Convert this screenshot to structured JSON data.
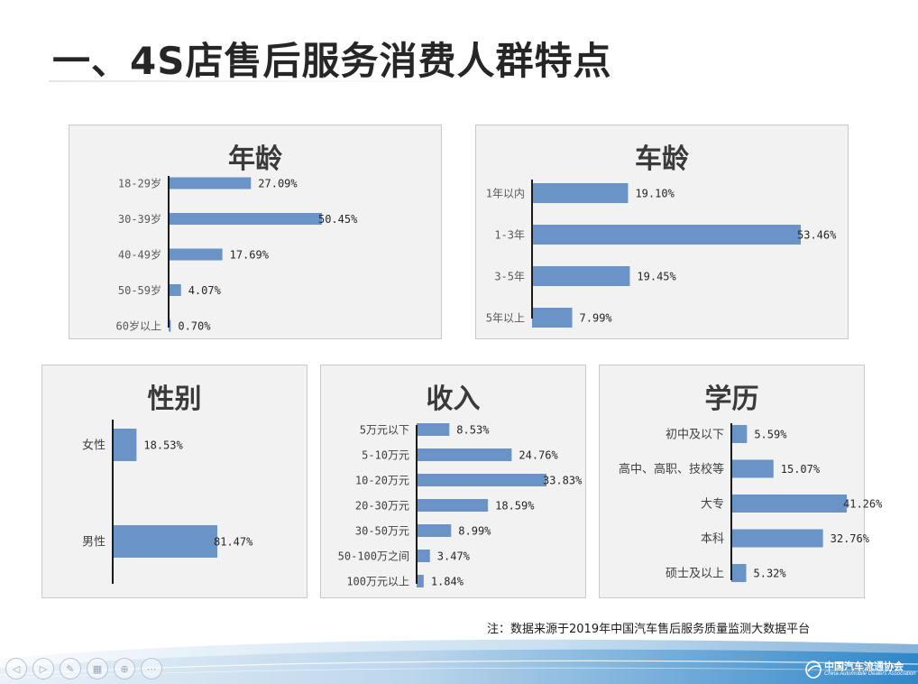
{
  "slide": {
    "title": "一、4S店售后服务消费人群特点",
    "footnote": "注：数据来源于2019年中国汽车售后服务质量监测大数据平台"
  },
  "logo": {
    "name": "中国汽车流通协会",
    "english": "China Automobile Dealers Association"
  },
  "colors": {
    "bar": "#6a93c8",
    "panel_bg": "#f2f2f2",
    "axis": "#1a1a1a"
  },
  "chart_data": [
    {
      "id": "age",
      "type": "bar",
      "orientation": "horizontal",
      "title": "年龄",
      "categories": [
        "18-29岁",
        "30-39岁",
        "40-49岁",
        "50-59岁",
        "60岁以上"
      ],
      "values": [
        27.09,
        50.45,
        17.69,
        4.07,
        0.7
      ],
      "labels": [
        "27.09%",
        "50.45%",
        "17.69%",
        "4.07%",
        "0.70%"
      ],
      "unit": "%",
      "xlim": [
        0,
        50.45
      ]
    },
    {
      "id": "car_age",
      "type": "bar",
      "orientation": "horizontal",
      "title": "车龄",
      "categories": [
        "1年以内",
        "1-3年",
        "3-5年",
        "5年以上"
      ],
      "values": [
        19.1,
        53.46,
        19.45,
        7.99
      ],
      "labels": [
        "19.10%",
        "53.46%",
        "19.45%",
        "7.99%"
      ],
      "unit": "%",
      "xlim": [
        0,
        53.46
      ]
    },
    {
      "id": "gender",
      "type": "bar",
      "orientation": "horizontal",
      "title": "性别",
      "categories": [
        "女性",
        "男性"
      ],
      "values": [
        18.53,
        81.47
      ],
      "labels": [
        "18.53%",
        "81.47%"
      ],
      "unit": "%",
      "xlim": [
        0,
        81.47
      ]
    },
    {
      "id": "income",
      "type": "bar",
      "orientation": "horizontal",
      "title": "收入",
      "categories": [
        "5万元以下",
        "5-10万元",
        "10-20万元",
        "20-30万元",
        "30-50万元",
        "50-100万之间",
        "100万元以上"
      ],
      "values": [
        8.53,
        24.76,
        33.83,
        18.59,
        8.99,
        3.47,
        1.84
      ],
      "labels": [
        "8.53%",
        "24.76%",
        "33.83%",
        "18.59%",
        "8.99%",
        "3.47%",
        "1.84%"
      ],
      "unit": "%",
      "xlim": [
        0,
        33.83
      ]
    },
    {
      "id": "education",
      "type": "bar",
      "orientation": "horizontal",
      "title": "学历",
      "categories": [
        "初中及以下",
        "高中、高职、技校等",
        "大专",
        "本科",
        "硕士及以上"
      ],
      "values": [
        5.59,
        15.07,
        41.26,
        32.76,
        5.32
      ],
      "labels": [
        "5.59%",
        "15.07%",
        "41.26%",
        "32.76%",
        "5.32%"
      ],
      "unit": "%",
      "xlim": [
        0,
        41.26
      ]
    }
  ],
  "nav": [
    "prev-icon",
    "next-icon",
    "pen-icon",
    "slides-icon",
    "zoom-icon",
    "more-icon"
  ]
}
